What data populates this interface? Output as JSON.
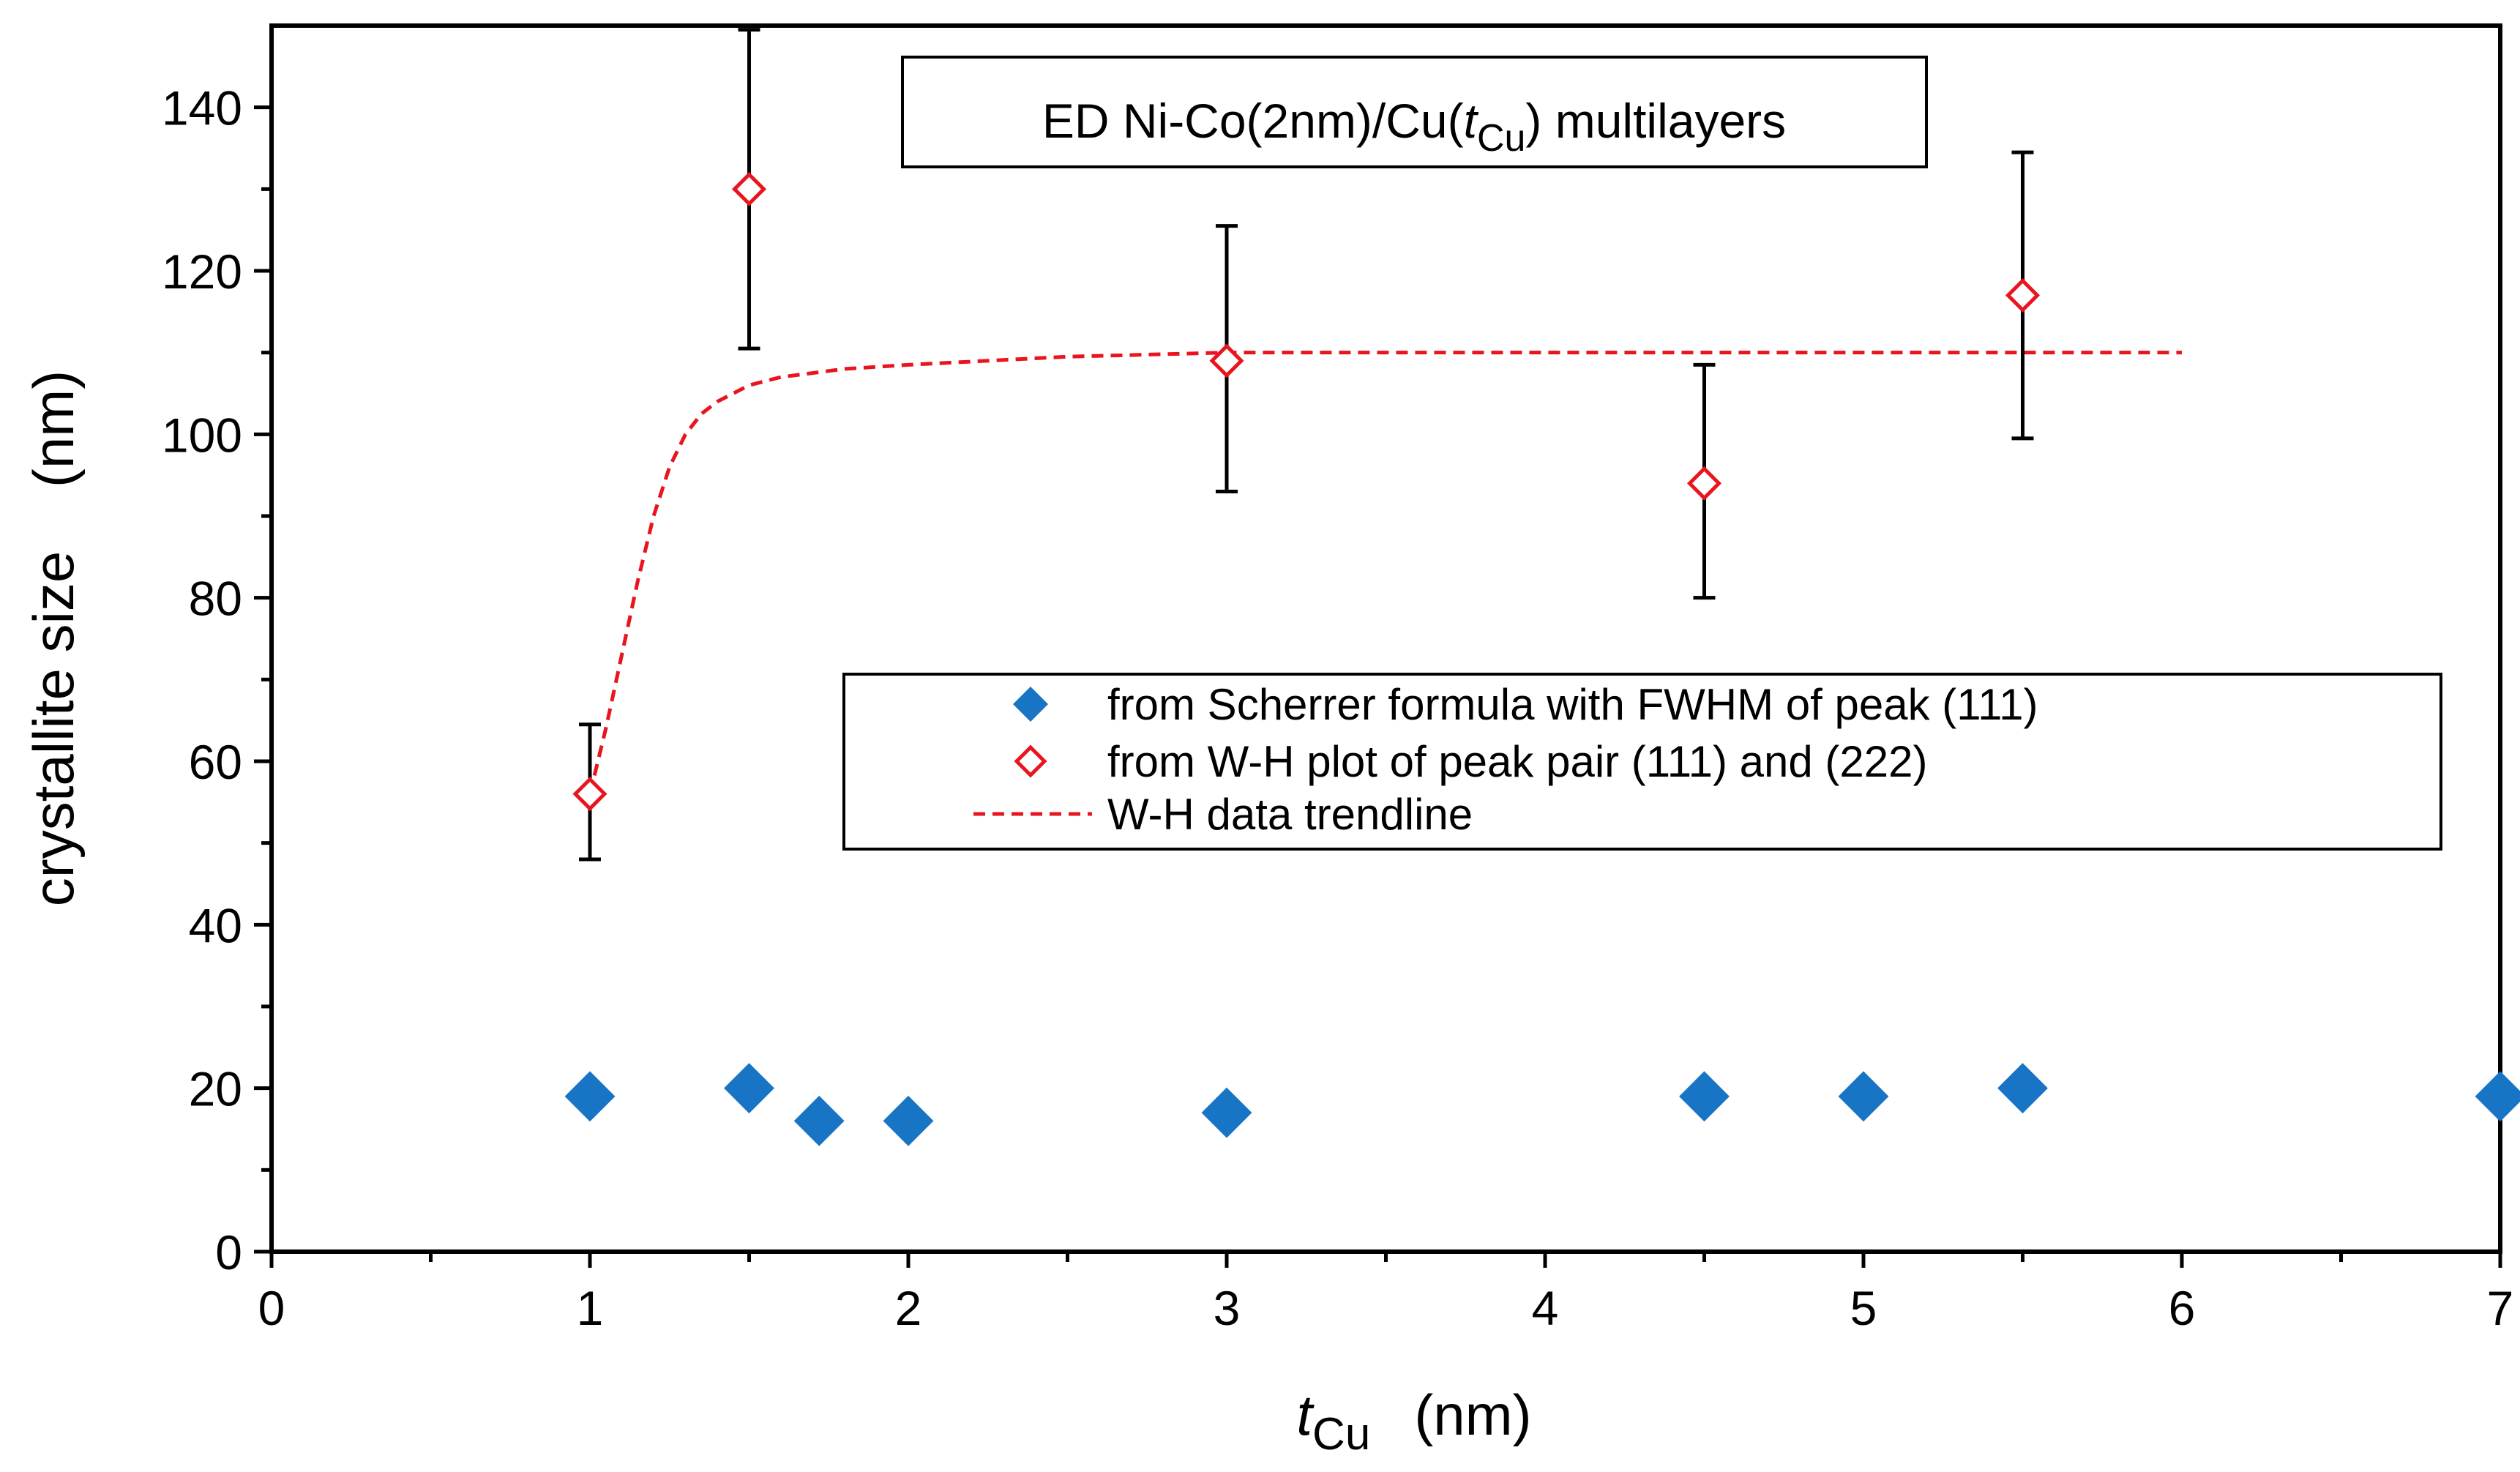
{
  "chart_data": {
    "type": "scatter",
    "title_main": "ED Ni-Co(2nm)/Cu(",
    "title_var": "t",
    "title_sub": "Cu",
    "title_tail": ") multilayers",
    "xlabel_var": "t",
    "xlabel_sub": "Cu",
    "xlabel_unit": "(nm)",
    "ylabel": "crystallite size    (nm)",
    "xlim": [
      0,
      7
    ],
    "ylim": [
      0,
      150
    ],
    "x_ticks": [
      "0",
      "1",
      "2",
      "3",
      "4",
      "5",
      "6",
      "7"
    ],
    "y_ticks": [
      "0",
      "20",
      "40",
      "60",
      "80",
      "100",
      "120",
      "140"
    ],
    "legend_position": "center-right",
    "series": [
      {
        "name": "from Scherrer formula with FWHM of peak (111)",
        "marker": "filled-diamond",
        "color": "#1874c4",
        "x": [
          1,
          1.5,
          1.72,
          2,
          3,
          4.5,
          5,
          5.5,
          7
        ],
        "y": [
          19,
          20,
          16,
          16,
          17,
          19,
          19,
          20,
          19
        ]
      },
      {
        "name": "from W-H plot of peak pair (111) and (222)",
        "marker": "open-diamond",
        "color": "#e8141e",
        "x": [
          1,
          1.5,
          3,
          4.5,
          5.5
        ],
        "y": [
          56,
          130,
          109,
          94,
          117
        ],
        "err_low": [
          48,
          110.5,
          93,
          80,
          99.5
        ],
        "err_high": [
          64.5,
          149.5,
          125.5,
          108.5,
          134.5
        ]
      },
      {
        "name": "W-H data trendline",
        "marker": "dashed-line",
        "color": "#e8141e",
        "x": [
          1,
          1.05,
          1.1,
          1.15,
          1.2,
          1.25,
          1.3,
          1.35,
          1.4,
          1.5,
          1.6,
          1.8,
          2,
          2.5,
          3,
          4,
          5,
          6
        ],
        "y": [
          56,
          64,
          73,
          82,
          90,
          96,
          100,
          102.5,
          104,
          106,
          107,
          108,
          108.5,
          109.5,
          110,
          110,
          110,
          110
        ]
      }
    ]
  }
}
